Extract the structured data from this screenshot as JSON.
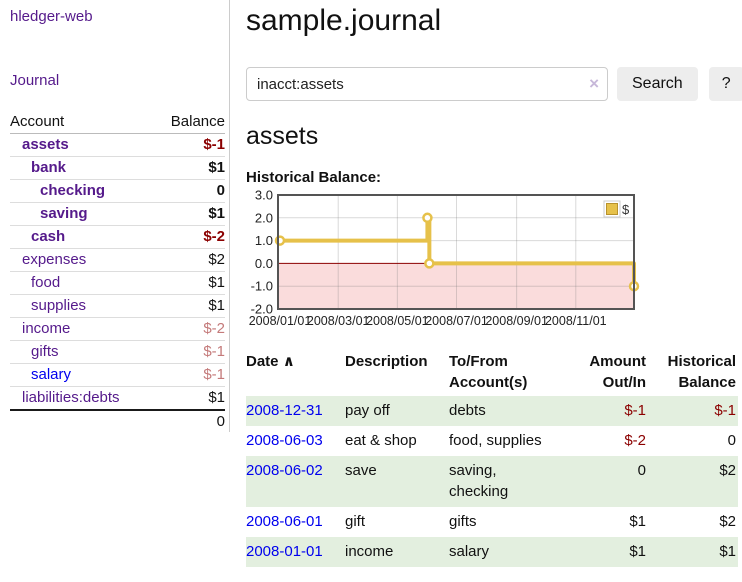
{
  "app": {
    "title": "hledger-web"
  },
  "sidebar": {
    "journal_link": "Journal",
    "table": {
      "headers": {
        "account": "Account",
        "balance": "Balance"
      },
      "rows": [
        {
          "account": "assets",
          "indent": 1,
          "bold": true,
          "link_color": "#551a8b",
          "balance": "$-1",
          "balance_color": "#8b0000"
        },
        {
          "account": "bank",
          "indent": 2,
          "bold": true,
          "link_color": "#551a8b",
          "balance": "$1",
          "balance_color": "#111111"
        },
        {
          "account": "checking",
          "indent": 3,
          "bold": true,
          "link_color": "#551a8b",
          "balance": "0",
          "balance_color": "#111111"
        },
        {
          "account": "saving",
          "indent": 3,
          "bold": true,
          "link_color": "#551a8b",
          "balance": "$1",
          "balance_color": "#111111"
        },
        {
          "account": "cash",
          "indent": 2,
          "bold": true,
          "link_color": "#551a8b",
          "balance": "$-2",
          "balance_color": "#8b0000"
        },
        {
          "account": "expenses",
          "indent": 1,
          "bold": false,
          "link_color": "#551a8b",
          "balance": "$2",
          "balance_color": "#111111"
        },
        {
          "account": "food",
          "indent": 2,
          "bold": false,
          "link_color": "#551a8b",
          "balance": "$1",
          "balance_color": "#111111"
        },
        {
          "account": "supplies",
          "indent": 2,
          "bold": false,
          "link_color": "#551a8b",
          "balance": "$1",
          "balance_color": "#111111"
        },
        {
          "account": "income",
          "indent": 1,
          "bold": false,
          "link_color": "#551a8b",
          "balance": "$-2",
          "balance_color": "#c47a7a"
        },
        {
          "account": "gifts",
          "indent": 2,
          "bold": false,
          "link_color": "#551a8b",
          "balance": "$-1",
          "balance_color": "#c47a7a"
        },
        {
          "account": "salary",
          "indent": 2,
          "bold": false,
          "link_color": "#0000ee",
          "balance": "$-1",
          "balance_color": "#c47a7a"
        },
        {
          "account": "liabilities:debts",
          "indent": 1,
          "bold": false,
          "link_color": "#551a8b",
          "balance": "$1",
          "balance_color": "#111111"
        }
      ],
      "total": "0"
    }
  },
  "main": {
    "title": "sample.journal",
    "search": {
      "value": "inacct:assets",
      "placeholder": "",
      "clear_icon": "×",
      "button_label": "Search",
      "help_label": "?"
    },
    "account_heading": "assets",
    "register": {
      "sort_icon": "∧",
      "headers": [
        "Date",
        "Description",
        "To/From Account(s)",
        "Amount Out/In",
        "Historical Balance"
      ],
      "rows": [
        {
          "date": "2008-12-31",
          "date_color": "#0000ee",
          "description": "pay off",
          "accounts": "debts",
          "amount": "$-1",
          "amount_color": "#8b0000",
          "balance": "$-1",
          "balance_color": "#8b0000",
          "stripe": true
        },
        {
          "date": "2008-06-03",
          "date_color": "#0000ee",
          "description": "eat & shop",
          "accounts": "food, supplies",
          "amount": "$-2",
          "amount_color": "#8b0000",
          "balance": "0",
          "balance_color": "#111111",
          "stripe": false
        },
        {
          "date": "2008-06-02",
          "date_color": "#0000ee",
          "description": "save",
          "accounts": "saving, checking",
          "amount": "0",
          "amount_color": "#111111",
          "balance": "$2",
          "balance_color": "#111111",
          "stripe": true
        },
        {
          "date": "2008-06-01",
          "date_color": "#0000ee",
          "description": "gift",
          "accounts": "gifts",
          "amount": "$1",
          "amount_color": "#111111",
          "balance": "$2",
          "balance_color": "#111111",
          "stripe": false
        },
        {
          "date": "2008-01-01",
          "date_color": "#0000ee",
          "description": "income",
          "accounts": "salary",
          "amount": "$1",
          "amount_color": "#111111",
          "balance": "$1",
          "balance_color": "#111111",
          "stripe": true
        }
      ]
    }
  },
  "chart_data": {
    "type": "line",
    "title": "Historical Balance:",
    "step": true,
    "series": [
      {
        "name": "$",
        "color": "#e6c14a",
        "marker_fill": "#ffffff",
        "points": [
          {
            "date": "2008-01-01",
            "day": 0,
            "value": 1
          },
          {
            "date": "2008-06-01",
            "day": 152,
            "value": 2
          },
          {
            "date": "2008-06-03",
            "day": 154,
            "value": 0
          },
          {
            "date": "2008-12-31",
            "day": 365,
            "value": -1
          }
        ]
      }
    ],
    "x_ticks": [
      {
        "label": "2008/01/01",
        "day": 0
      },
      {
        "label": "2008/03/01",
        "day": 60
      },
      {
        "label": "2008/05/01",
        "day": 121
      },
      {
        "label": "2008/07/01",
        "day": 182
      },
      {
        "label": "2008/09/01",
        "day": 244
      },
      {
        "label": "2008/11/01",
        "day": 305
      }
    ],
    "y_ticks": [
      "3.0",
      "2.0",
      "1.0",
      "0.0",
      "-1.0",
      "-2.0"
    ],
    "ylim": [
      -2,
      3
    ],
    "xlim_days": [
      0,
      365
    ],
    "grid": true,
    "plot_border_color": "#545454",
    "grid_color": "rgba(120,120,120,0.28)",
    "negative_region_fill": "#fadcdc",
    "zero_line_color": "#8b0000",
    "legend": {
      "label": "$",
      "position": "top-right"
    }
  }
}
